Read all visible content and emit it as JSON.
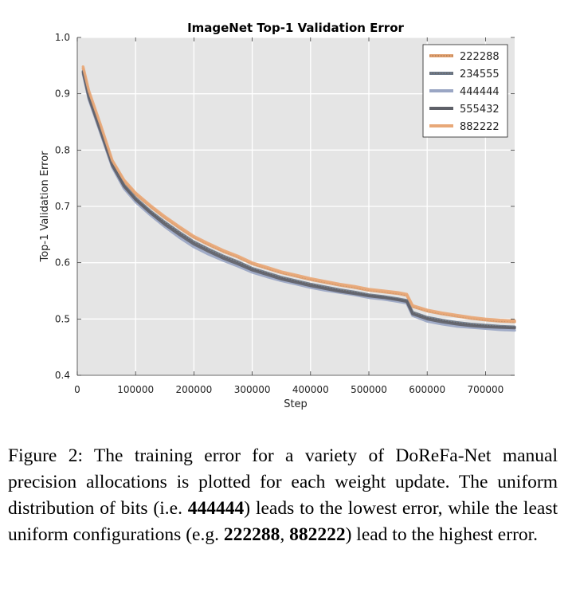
{
  "chart_data": {
    "type": "line",
    "title": "ImageNet Top-1 Validation Error",
    "xlabel": "Step",
    "ylabel": "Top-1 Validation Error",
    "xlim": [
      0,
      750000
    ],
    "ylim": [
      0.4,
      1.0
    ],
    "xticks": [
      "0",
      "100000",
      "200000",
      "300000",
      "400000",
      "500000",
      "600000",
      "700000"
    ],
    "yticks": [
      "0.4",
      "0.5",
      "0.6",
      "0.7",
      "0.8",
      "0.9",
      "1.0"
    ],
    "grid": true,
    "legend_position": "top-right",
    "background_color": "#e5e5e5",
    "series": [
      {
        "name": "222288",
        "color": "#e0a070",
        "dotted": true,
        "x": [
          10000,
          20000,
          40000,
          60000,
          80000,
          100000,
          125000,
          150000,
          175000,
          200000,
          225000,
          250000,
          275000,
          300000,
          325000,
          350000,
          375000,
          400000,
          425000,
          450000,
          475000,
          500000,
          525000,
          550000,
          565000,
          575000,
          600000,
          625000,
          650000,
          675000,
          700000,
          725000,
          750000
        ],
        "y": [
          0.945,
          0.9,
          0.84,
          0.78,
          0.745,
          0.722,
          0.7,
          0.68,
          0.662,
          0.645,
          0.632,
          0.62,
          0.61,
          0.598,
          0.59,
          0.582,
          0.576,
          0.57,
          0.565,
          0.56,
          0.556,
          0.551,
          0.548,
          0.545,
          0.542,
          0.522,
          0.514,
          0.509,
          0.505,
          0.501,
          0.498,
          0.496,
          0.495
        ]
      },
      {
        "name": "234555",
        "color": "#6e7a8a",
        "dotted": true,
        "x": [
          10000,
          20000,
          40000,
          60000,
          80000,
          100000,
          125000,
          150000,
          175000,
          200000,
          225000,
          250000,
          275000,
          300000,
          325000,
          350000,
          375000,
          400000,
          425000,
          450000,
          475000,
          500000,
          525000,
          550000,
          565000,
          575000,
          600000,
          625000,
          650000,
          675000,
          700000,
          725000,
          750000
        ],
        "y": [
          0.94,
          0.895,
          0.835,
          0.775,
          0.738,
          0.715,
          0.692,
          0.672,
          0.654,
          0.637,
          0.624,
          0.612,
          0.602,
          0.59,
          0.582,
          0.574,
          0.568,
          0.562,
          0.557,
          0.552,
          0.548,
          0.543,
          0.54,
          0.536,
          0.533,
          0.512,
          0.503,
          0.498,
          0.494,
          0.491,
          0.489,
          0.487,
          0.486
        ]
      },
      {
        "name": "444444",
        "color": "#9aa6c4",
        "dotted": false,
        "x": [
          10000,
          20000,
          40000,
          60000,
          80000,
          100000,
          125000,
          150000,
          175000,
          200000,
          225000,
          250000,
          275000,
          300000,
          325000,
          350000,
          375000,
          400000,
          425000,
          450000,
          475000,
          500000,
          525000,
          550000,
          565000,
          575000,
          600000,
          625000,
          650000,
          675000,
          700000,
          725000,
          750000
        ],
        "y": [
          0.935,
          0.89,
          0.83,
          0.77,
          0.732,
          0.708,
          0.685,
          0.664,
          0.645,
          0.628,
          0.615,
          0.604,
          0.594,
          0.583,
          0.575,
          0.568,
          0.562,
          0.556,
          0.551,
          0.547,
          0.543,
          0.538,
          0.535,
          0.531,
          0.528,
          0.506,
          0.496,
          0.491,
          0.487,
          0.485,
          0.483,
          0.481,
          0.48
        ]
      },
      {
        "name": "555432",
        "color": "#5e6068",
        "dotted": false,
        "x": [
          10000,
          20000,
          40000,
          60000,
          80000,
          100000,
          125000,
          150000,
          175000,
          200000,
          225000,
          250000,
          275000,
          300000,
          325000,
          350000,
          375000,
          400000,
          425000,
          450000,
          475000,
          500000,
          525000,
          550000,
          565000,
          575000,
          600000,
          625000,
          650000,
          675000,
          700000,
          725000,
          750000
        ],
        "y": [
          0.938,
          0.893,
          0.833,
          0.773,
          0.736,
          0.712,
          0.689,
          0.668,
          0.65,
          0.633,
          0.62,
          0.608,
          0.598,
          0.587,
          0.579,
          0.571,
          0.565,
          0.559,
          0.554,
          0.549,
          0.545,
          0.541,
          0.538,
          0.534,
          0.531,
          0.509,
          0.5,
          0.495,
          0.491,
          0.488,
          0.486,
          0.485,
          0.484
        ]
      },
      {
        "name": "882222",
        "color": "#e8a878",
        "dotted": false,
        "x": [
          10000,
          20000,
          40000,
          60000,
          80000,
          100000,
          125000,
          150000,
          175000,
          200000,
          225000,
          250000,
          275000,
          300000,
          325000,
          350000,
          375000,
          400000,
          425000,
          450000,
          475000,
          500000,
          525000,
          550000,
          565000,
          575000,
          600000,
          625000,
          650000,
          675000,
          700000,
          725000,
          750000
        ],
        "y": [
          0.948,
          0.905,
          0.845,
          0.782,
          0.747,
          0.724,
          0.702,
          0.682,
          0.664,
          0.647,
          0.634,
          0.622,
          0.612,
          0.6,
          0.592,
          0.584,
          0.578,
          0.572,
          0.567,
          0.562,
          0.558,
          0.553,
          0.55,
          0.547,
          0.544,
          0.524,
          0.516,
          0.511,
          0.507,
          0.503,
          0.5,
          0.498,
          0.497
        ]
      }
    ]
  },
  "caption": {
    "lead": "Figure 2: The training error for a variety of DoReFa-Net manual precision allocations is plotted for each weight update.  The uniform distribution of bits (i.e. ",
    "bold1": "444444",
    "mid": ") leads to the lowest error, while the least uniform configurations (e.g. ",
    "bold2": "222288",
    "sep": ", ",
    "bold3": "882222",
    "tail": ") lead to the highest error."
  }
}
